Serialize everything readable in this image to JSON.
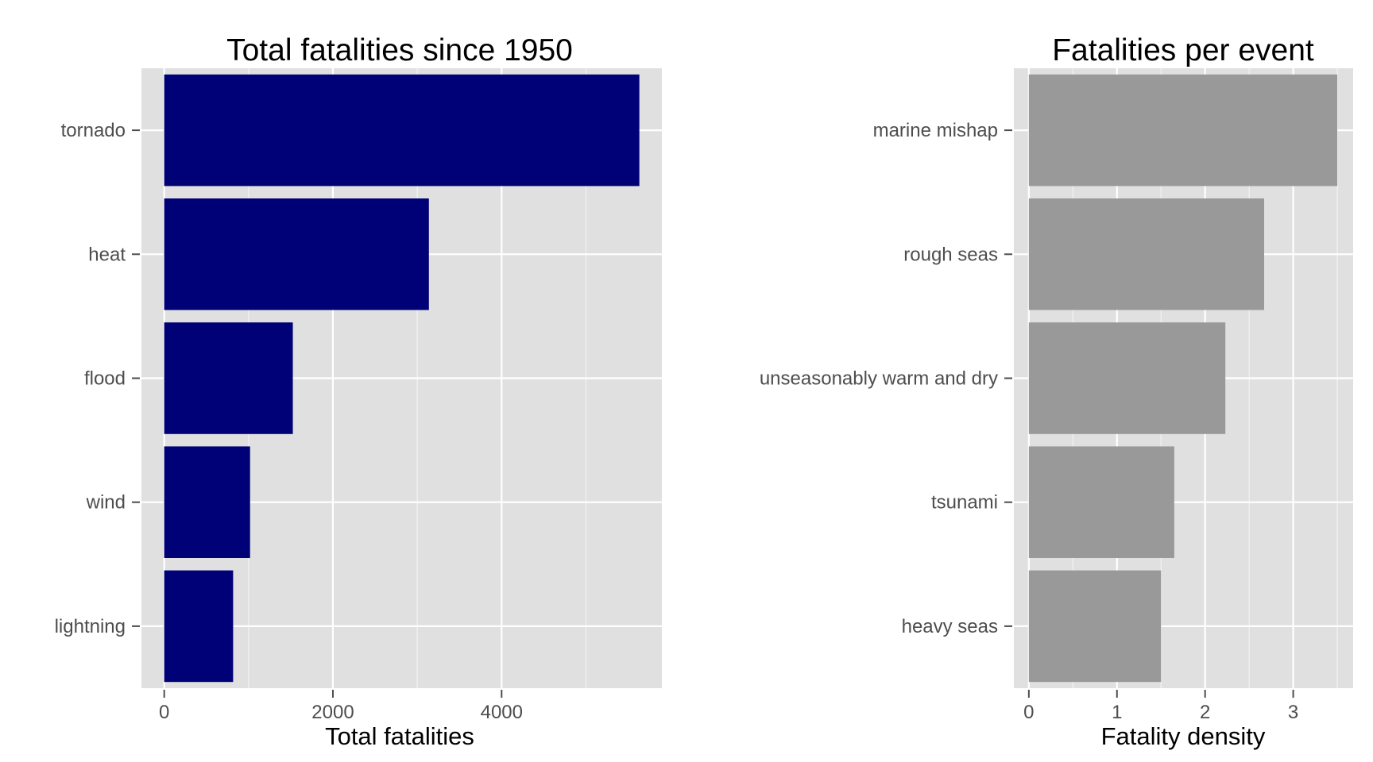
{
  "chart_data": [
    {
      "type": "bar",
      "orientation": "horizontal",
      "title": "Total fatalities since 1950",
      "xlabel": "Total fatalities",
      "ylabel": "",
      "categories": [
        "tornado",
        "heat",
        "flood",
        "wind",
        "lightning"
      ],
      "values": [
        5633,
        3138,
        1525,
        1018,
        817
      ],
      "xlim": [
        -270,
        5900
      ],
      "xticks": [
        0,
        2000,
        4000
      ],
      "xtick_labels": [
        "0",
        "2000",
        "4000"
      ],
      "grid": true,
      "bar_color": "#000077",
      "panel_background": "#e0e0e0",
      "grid_color": "#ffffff"
    },
    {
      "type": "bar",
      "orientation": "horizontal",
      "title": "Fatalities per event",
      "xlabel": "Fatality density",
      "ylabel": "",
      "categories": [
        "marine mishap",
        "rough seas",
        "unseasonably warm and dry",
        "tsunami",
        "heavy seas"
      ],
      "values": [
        3.5,
        2.67,
        2.23,
        1.65,
        1.5
      ],
      "xlim": [
        -0.17,
        3.68
      ],
      "xticks": [
        0,
        1,
        2,
        3
      ],
      "xtick_labels": [
        "0",
        "1",
        "2",
        "3"
      ],
      "grid": true,
      "bar_color": "#999999",
      "panel_background": "#e0e0e0",
      "grid_color": "#ffffff"
    }
  ]
}
